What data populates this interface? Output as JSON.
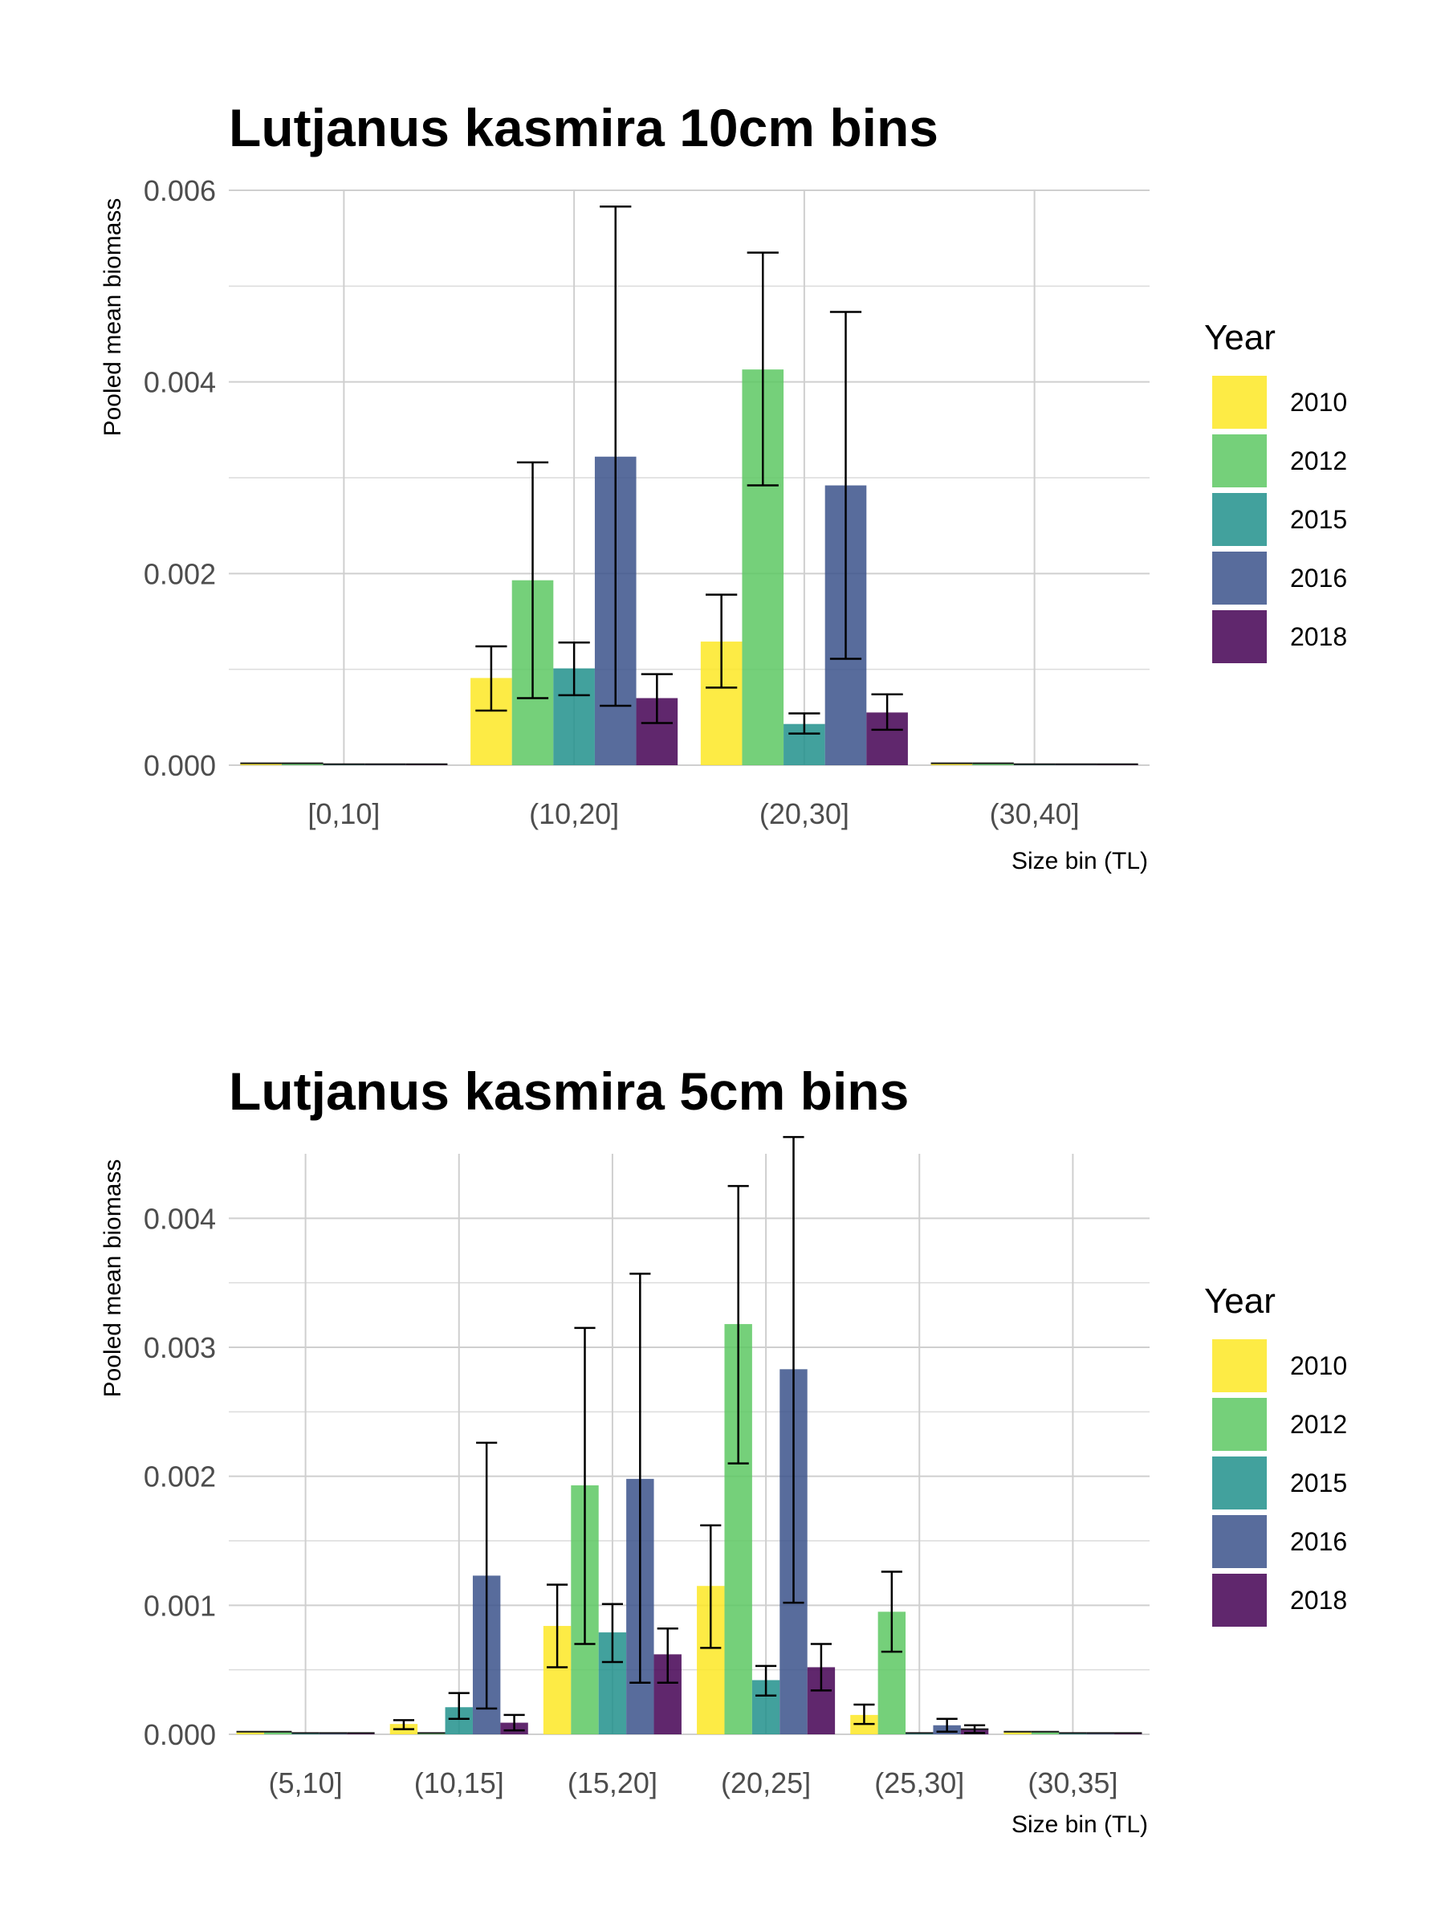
{
  "chart_data": [
    {
      "type": "bar",
      "title": "Lutjanus kasmira 10cm bins",
      "xlabel": "Size bin (TL)",
      "ylabel": "Pooled mean biomass",
      "ylim": [
        0,
        0.006
      ],
      "yticks": [
        0,
        0.002,
        0.004,
        0.006
      ],
      "ytick_labels": [
        "0.000",
        "0.002",
        "0.004",
        "0.006"
      ],
      "grid": true,
      "legend": {
        "title": "Year",
        "position": "right"
      },
      "categories": [
        "[0,10]",
        "(10,20]",
        "(20,30]",
        "(30,40]"
      ],
      "series": [
        {
          "name": "2010",
          "color": "#FDE725",
          "values": [
            2e-05,
            0.00091,
            0.00129,
            2e-05
          ],
          "err_low": [
            null,
            0.00057,
            0.00081,
            null
          ],
          "err_high": [
            null,
            0.00124,
            0.00178,
            null
          ]
        },
        {
          "name": "2012",
          "color": "#5DC863",
          "values": [
            2e-05,
            0.00193,
            0.00413,
            2e-05
          ],
          "err_low": [
            null,
            0.0007,
            0.00292,
            null
          ],
          "err_high": [
            null,
            0.00316,
            0.00535,
            null
          ]
        },
        {
          "name": "2015",
          "color": "#21908C",
          "values": [
            1e-05,
            0.00101,
            0.00043,
            1e-05
          ],
          "err_low": [
            null,
            0.00073,
            0.00033,
            null
          ],
          "err_high": [
            null,
            0.00128,
            0.00054,
            null
          ]
        },
        {
          "name": "2016",
          "color": "#3B528B",
          "values": [
            1e-05,
            0.00322,
            0.00292,
            1e-05
          ],
          "err_low": [
            null,
            0.00062,
            0.00111,
            null
          ],
          "err_high": [
            null,
            0.00583,
            0.00473,
            null
          ]
        },
        {
          "name": "2018",
          "color": "#440154",
          "values": [
            1e-05,
            0.0007,
            0.00055,
            1e-05
          ],
          "err_low": [
            null,
            0.00044,
            0.00037,
            null
          ],
          "err_high": [
            null,
            0.00095,
            0.00074,
            null
          ]
        }
      ]
    },
    {
      "type": "bar",
      "title": "Lutjanus kasmira 5cm bins",
      "xlabel": "Size bin (TL)",
      "ylabel": "Pooled mean biomass",
      "ylim": [
        0,
        0.0045
      ],
      "yticks": [
        0,
        0.001,
        0.002,
        0.003,
        0.004
      ],
      "ytick_labels": [
        "0.000",
        "0.001",
        "0.002",
        "0.003",
        "0.004"
      ],
      "grid": true,
      "legend": {
        "title": "Year",
        "position": "right"
      },
      "categories": [
        "(5,10]",
        "(10,15]",
        "(15,20]",
        "(20,25]",
        "(25,30]",
        "(30,35]"
      ],
      "series": [
        {
          "name": "2010",
          "color": "#FDE725",
          "values": [
            2e-05,
            8e-05,
            0.00084,
            0.00115,
            0.00015,
            2e-05
          ],
          "err_low": [
            null,
            4e-05,
            0.00052,
            0.00067,
            8e-05,
            null
          ],
          "err_high": [
            null,
            0.00011,
            0.00116,
            0.00162,
            0.00023,
            null
          ]
        },
        {
          "name": "2012",
          "color": "#5DC863",
          "values": [
            2e-05,
            1e-05,
            0.00193,
            0.00318,
            0.00095,
            2e-05
          ],
          "err_low": [
            null,
            null,
            0.0007,
            0.0021,
            0.00064,
            null
          ],
          "err_high": [
            null,
            null,
            0.00315,
            0.00425,
            0.00126,
            null
          ]
        },
        {
          "name": "2015",
          "color": "#21908C",
          "values": [
            1e-05,
            0.00021,
            0.00079,
            0.00042,
            1e-05,
            1e-05
          ],
          "err_low": [
            null,
            0.00012,
            0.00056,
            0.0003,
            null,
            null
          ],
          "err_high": [
            null,
            0.00032,
            0.00101,
            0.00053,
            null,
            null
          ]
        },
        {
          "name": "2016",
          "color": "#3B528B",
          "values": [
            1e-05,
            0.00123,
            0.00198,
            0.00283,
            7e-05,
            1e-05
          ],
          "err_low": [
            null,
            0.0002,
            0.0004,
            0.00102,
            2e-05,
            null
          ],
          "err_high": [
            null,
            0.00226,
            0.00357,
            0.00463,
            0.00012,
            null
          ]
        },
        {
          "name": "2018",
          "color": "#440154",
          "values": [
            1e-05,
            9e-05,
            0.00062,
            0.00052,
            4e-05,
            1e-05
          ],
          "err_low": [
            null,
            3e-05,
            0.0004,
            0.00034,
            1e-05,
            null
          ],
          "err_high": [
            null,
            0.00015,
            0.00082,
            0.0007,
            7e-05,
            null
          ]
        }
      ]
    }
  ]
}
